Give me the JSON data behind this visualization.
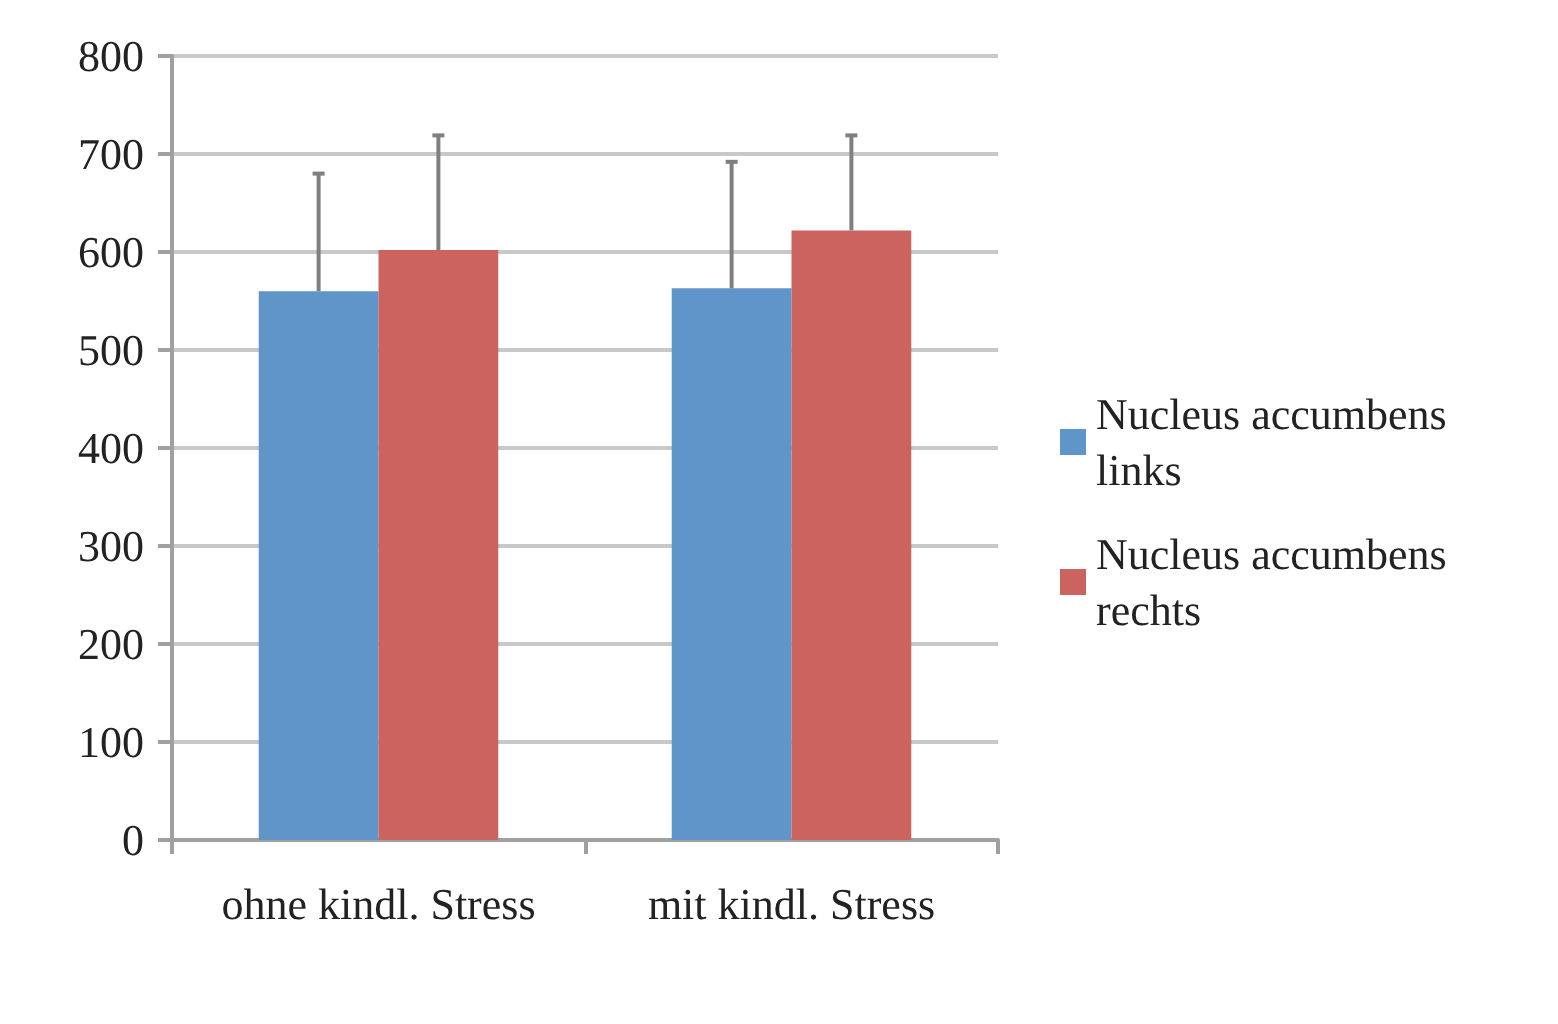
{
  "chart_data": {
    "type": "bar",
    "categories": [
      "ohne kindl. Stress",
      "mit kindl. Stress"
    ],
    "series": [
      {
        "name": "Nucleus accumbens links",
        "color": "#5f95c8",
        "values": [
          560,
          563
        ],
        "errors": [
          [
            560,
            680
          ],
          [
            563,
            692
          ]
        ]
      },
      {
        "name": "Nucleus accumbens rechts",
        "color": "#cb645e",
        "values": [
          602,
          622
        ],
        "errors": [
          [
            602,
            719
          ],
          [
            622,
            719
          ]
        ]
      }
    ],
    "ylim": [
      0,
      800
    ],
    "yticks": [
      0,
      100,
      200,
      300,
      400,
      500,
      600,
      700,
      800
    ],
    "grid": "y",
    "legend": "right"
  }
}
